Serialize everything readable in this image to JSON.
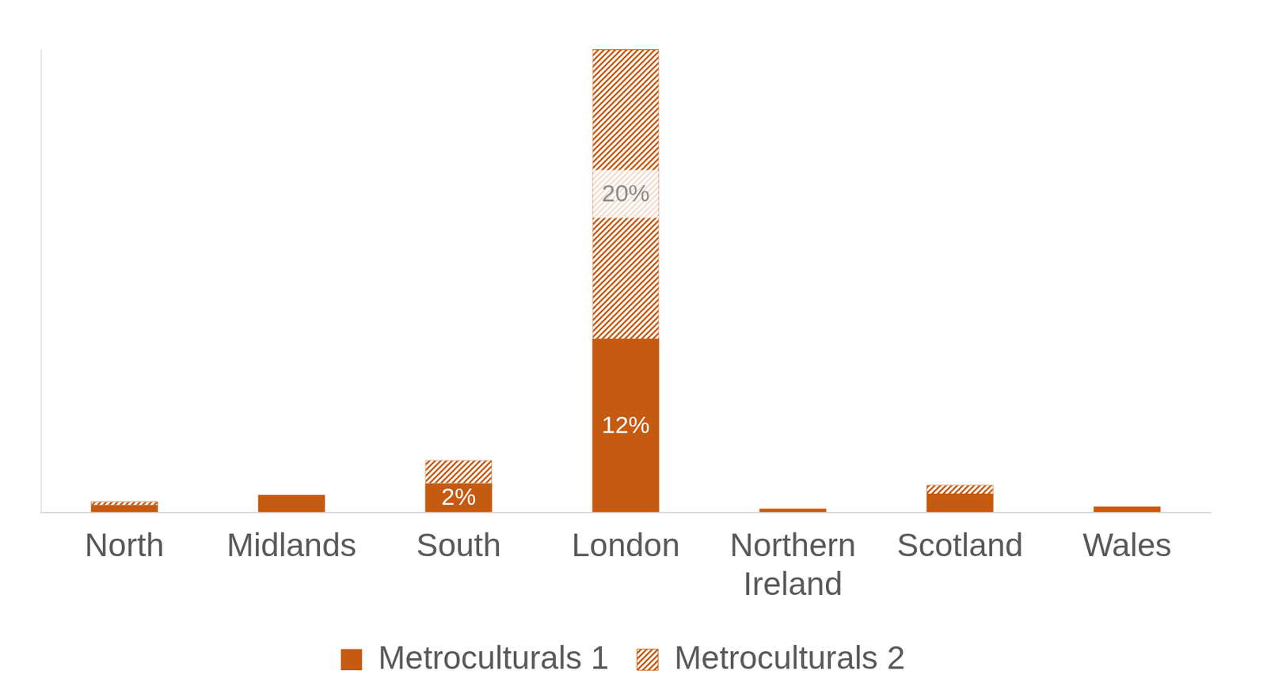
{
  "chart_data": {
    "type": "bar",
    "categories": [
      "North",
      "Midlands",
      "South",
      "London",
      "Northern Ireland",
      "Scotland",
      "Wales"
    ],
    "series": [
      {
        "name": "Metroculturals 1",
        "color": "#c55a11",
        "values": [
          0.5,
          1.2,
          2,
          12,
          0.25,
          1.3,
          0.4
        ],
        "value_labels": [
          null,
          null,
          "2%",
          "12%",
          null,
          null,
          null
        ]
      },
      {
        "name": "Metroculturals 2",
        "color": "#c55a11",
        "values": [
          0.25,
          0,
          1.6,
          20,
          0,
          0.6,
          0
        ],
        "value_labels": [
          null,
          null,
          null,
          "20%",
          null,
          null,
          null
        ]
      }
    ],
    "stacked": true,
    "data_labels": true,
    "ylim": [
      0,
      32
    ],
    "grid": false,
    "legend": "bottom",
    "tick_labels": "x"
  }
}
